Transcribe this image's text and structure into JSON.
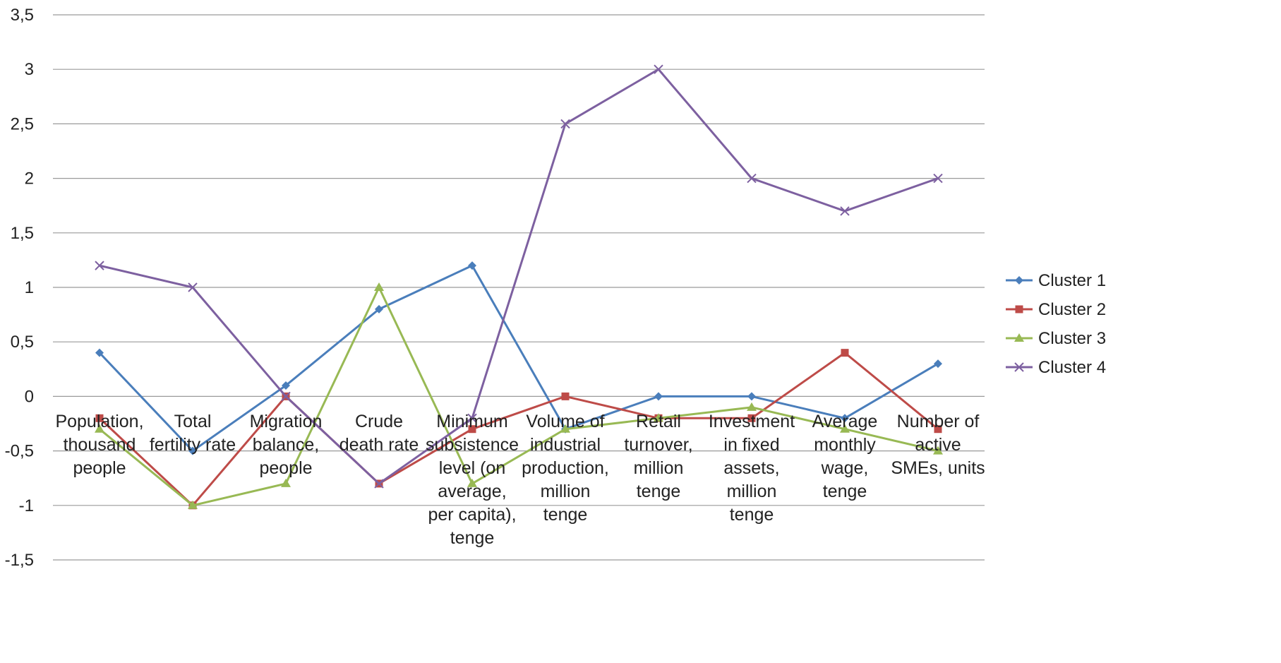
{
  "chart_data": {
    "type": "line",
    "title": "",
    "xlabel": "",
    "ylabel": "",
    "ylim": [
      -1.5,
      3.5
    ],
    "yticks": [
      3.5,
      3,
      2.5,
      2,
      1.5,
      1,
      0.5,
      0,
      -0.5,
      -1,
      -1.5
    ],
    "ytick_labels": [
      "3,5",
      "3",
      "2,5",
      "2",
      "1,5",
      "1",
      "0,5",
      "0",
      "-0,5",
      "-1",
      "-1,5"
    ],
    "grid": "horizontal",
    "legend_position": "right",
    "categories": [
      "Population, thousand people",
      "Total fertility rate",
      "Migration balance, people",
      "Crude death rate",
      "Minimum subsistence level (on average, per capita), tenge",
      "Volume of industrial production, million tenge",
      "Retail turnover, million tenge",
      "Investment in fixed assets, million tenge",
      "Average monthly wage, tenge",
      "Number of active SMEs, units"
    ],
    "category_lines": [
      [
        "Population,",
        "thousand",
        "people"
      ],
      [
        "Total",
        "fertility rate"
      ],
      [
        "Migration",
        "balance,",
        "people"
      ],
      [
        "Crude",
        "death rate"
      ],
      [
        "Minimum",
        "subsistence",
        "level (on",
        "average,",
        "per capita),",
        "tenge"
      ],
      [
        "Volume of",
        "industrial",
        "production,",
        "million",
        "tenge"
      ],
      [
        "Retail",
        "turnover,",
        "million",
        "tenge"
      ],
      [
        "Investment",
        "in fixed",
        "assets,",
        "million",
        "tenge"
      ],
      [
        "Average",
        "monthly",
        "wage,",
        "tenge"
      ],
      [
        "Number of",
        "active",
        "SMEs, units"
      ]
    ],
    "series": [
      {
        "name": "Cluster 1",
        "color": "#4A7EBB",
        "marker": "diamond",
        "values": [
          0.4,
          -0.5,
          0.1,
          0.8,
          1.2,
          -0.3,
          0.0,
          0.0,
          -0.2,
          0.3
        ]
      },
      {
        "name": "Cluster 2",
        "color": "#BE4B48",
        "marker": "square",
        "values": [
          -0.2,
          -1.0,
          0.0,
          -0.8,
          -0.3,
          0.0,
          -0.2,
          -0.2,
          0.4,
          -0.3
        ]
      },
      {
        "name": "Cluster 3",
        "color": "#98B954",
        "marker": "triangle",
        "values": [
          -0.3,
          -1.0,
          -0.8,
          1.0,
          -0.8,
          -0.3,
          -0.2,
          -0.1,
          -0.3,
          -0.5
        ]
      },
      {
        "name": "Cluster 4",
        "color": "#7D60A0",
        "marker": "x",
        "values": [
          1.2,
          1.0,
          0.0,
          -0.8,
          -0.2,
          2.5,
          3.0,
          2.0,
          1.7,
          2.0
        ]
      }
    ]
  }
}
